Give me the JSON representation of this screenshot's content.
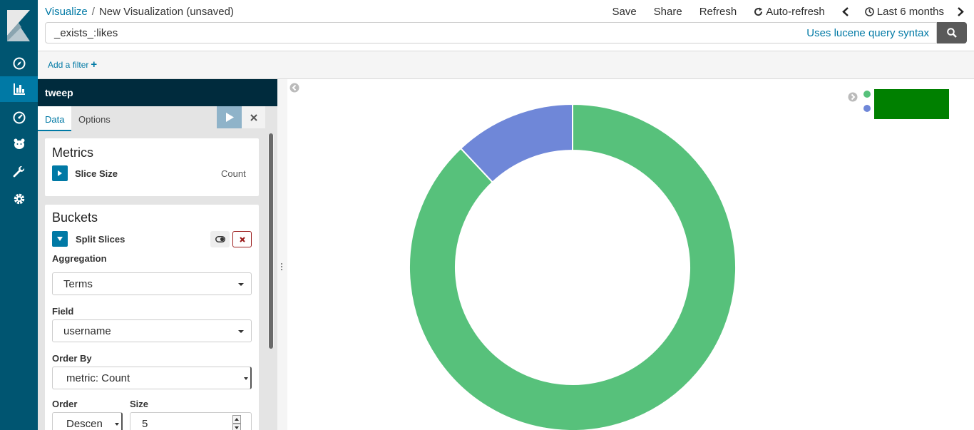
{
  "nav": {
    "items": [
      {
        "name": "discover",
        "icon": "compass-icon"
      },
      {
        "name": "visualize",
        "icon": "bar-chart-icon",
        "active": true
      },
      {
        "name": "dashboard",
        "icon": "gauge-icon"
      },
      {
        "name": "timelion",
        "icon": "bear-icon"
      },
      {
        "name": "dev-tools",
        "icon": "wrench-icon"
      },
      {
        "name": "management",
        "icon": "gear-icon"
      }
    ]
  },
  "header": {
    "breadcrumb_root": "Visualize",
    "breadcrumb_separator": "/",
    "breadcrumb_current": "New Visualization (unsaved)",
    "menu": {
      "save": "Save",
      "share": "Share",
      "refresh": "Refresh",
      "auto_refresh": "Auto-refresh",
      "time_range": "Last 6 months"
    }
  },
  "query": {
    "value": "_exists_:likes",
    "hint": "Uses lucene query syntax"
  },
  "filters": {
    "add_label": "Add a filter",
    "add_plus": "+"
  },
  "editor": {
    "index_pattern": "tweep",
    "tabs": [
      "Data",
      "Options"
    ],
    "metrics": {
      "title": "Metrics",
      "agg_label": "Slice Size",
      "agg_type": "Count"
    },
    "buckets": {
      "title": "Buckets",
      "agg_label": "Split Slices",
      "aggregation_label": "Aggregation",
      "aggregation_value": "Terms",
      "field_label": "Field",
      "field_value": "username",
      "order_by_label": "Order By",
      "order_by_value": "metric: Count",
      "order_label": "Order",
      "order_value": "Descen",
      "size_label": "Size",
      "size_value": "5"
    }
  },
  "chart_data": {
    "type": "pie",
    "donut": true,
    "categories": [
      "",
      ""
    ],
    "values": [
      88,
      12
    ],
    "colors": [
      "#57c17b",
      "#6f87d8"
    ]
  }
}
